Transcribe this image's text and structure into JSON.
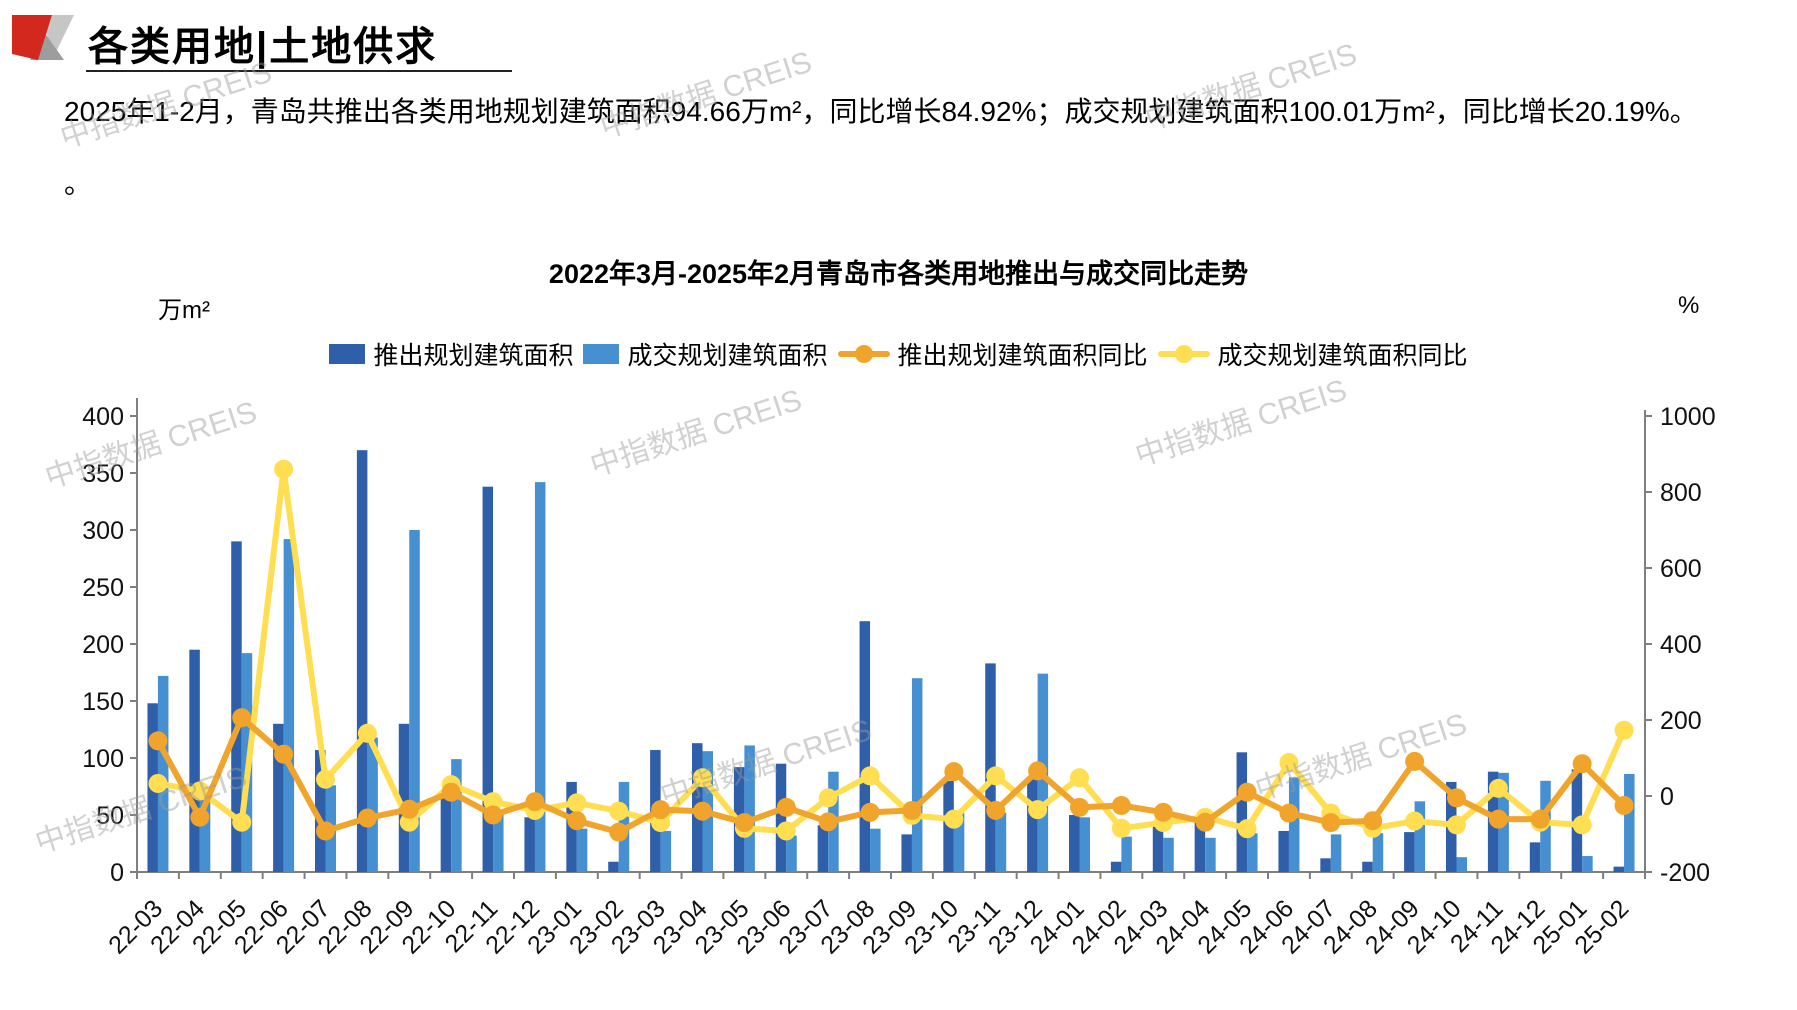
{
  "header": {
    "title": "各类用地|土地供求"
  },
  "summary": {
    "line1": "2025年1-2月，青岛共推出各类用地规划建筑面积94.66万m²，同比增长84.92%；成交规划建筑面积100.01万m²，同比增长20.19%。",
    "line2": "。"
  },
  "watermark_text": "中指数据 CREIS",
  "chart_data": {
    "type": "bar+line",
    "title": "2022年3月-2025年2月青岛市各类用地推出与成交同比走势",
    "left_axis": {
      "unit": "万m²",
      "min": 0,
      "max": 400,
      "step": 50
    },
    "right_axis": {
      "unit": "%",
      "min": -200,
      "max": 1000,
      "step": 200
    },
    "legend_position": "top",
    "grid": false,
    "categories": [
      "22-03",
      "22-04",
      "22-05",
      "22-06",
      "22-07",
      "22-08",
      "22-09",
      "22-10",
      "22-11",
      "22-12",
      "23-01",
      "23-02",
      "23-03",
      "23-04",
      "23-05",
      "23-06",
      "23-07",
      "23-08",
      "23-09",
      "23-10",
      "23-11",
      "23-12",
      "24-01",
      "24-02",
      "24-03",
      "24-04",
      "24-05",
      "24-06",
      "24-07",
      "24-08",
      "24-09",
      "24-10",
      "24-11",
      "24-12",
      "25-01",
      "25-02"
    ],
    "series": [
      {
        "name": "推出规划建筑面积",
        "type": "bar",
        "axis": "left",
        "color": "#2F5FA8",
        "values": [
          148,
          195,
          290,
          130,
          107,
          370,
          130,
          69,
          338,
          48,
          79,
          9,
          107,
          113,
          92,
          95,
          41,
          220,
          33,
          80,
          183,
          83,
          50,
          9,
          40,
          45,
          105,
          36,
          12,
          9,
          35,
          79,
          88,
          26,
          90,
          4.7
        ]
      },
      {
        "name": "成交规划建筑面积",
        "type": "bar",
        "axis": "left",
        "color": "#4690D2",
        "values": [
          172,
          68,
          192,
          292,
          76,
          118,
          300,
          99,
          54,
          342,
          38,
          79,
          36,
          106,
          111,
          32,
          88,
          38,
          170,
          52,
          52,
          174,
          48,
          31,
          30,
          30,
          34,
          83,
          33,
          34,
          62,
          13,
          87,
          80,
          14,
          86
        ]
      },
      {
        "name": "推出规划建筑面积同比",
        "type": "line",
        "axis": "right",
        "color": "#F1A42B",
        "values": [
          145,
          -56,
          206,
          110,
          -92,
          -58,
          -35,
          10,
          -50,
          -15,
          -65,
          -95,
          -36,
          -40,
          -70,
          -30,
          -68,
          -43,
          -38,
          64,
          -38,
          66,
          -30,
          -25,
          -43,
          -69,
          10,
          -45,
          -70,
          -65,
          91,
          -5,
          -61,
          -61,
          85,
          -25
        ]
      },
      {
        "name": "成交规划建筑面积同比",
        "type": "line",
        "axis": "right",
        "color": "#FFDE52",
        "values": [
          33,
          13,
          -69,
          860,
          44,
          165,
          -69,
          30,
          -15,
          -38,
          -18,
          -40,
          -70,
          48,
          -85,
          -92,
          -5,
          53,
          -51,
          -61,
          53,
          -36,
          48,
          -85,
          -70,
          -56,
          -86,
          88,
          -45,
          -85,
          -66,
          -76,
          20,
          -69,
          -76,
          173
        ]
      }
    ]
  }
}
